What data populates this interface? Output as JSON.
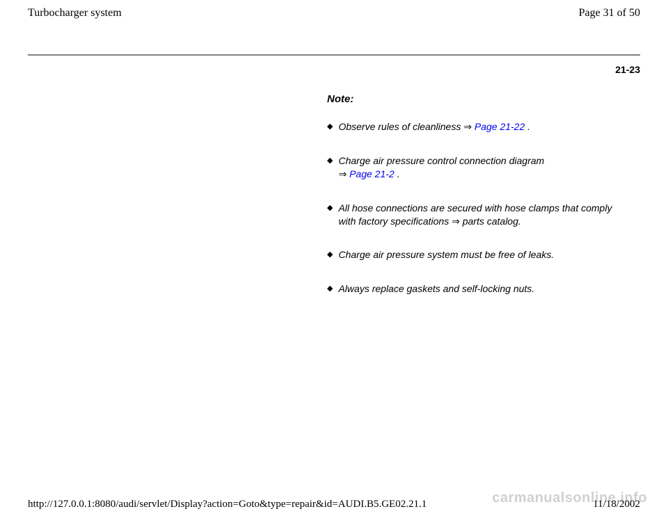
{
  "header": {
    "title": "Turbocharger system",
    "page_indicator": "Page 31 of 50"
  },
  "page_ref": "21-23",
  "content": {
    "heading": "Note:",
    "items": [
      {
        "pre_text": "Observe rules of cleanliness   ",
        "arrow": "⇒",
        "link": "Page 21-22",
        "post_text": " ."
      },
      {
        "pre_text": "Charge air pressure control connection diagram ",
        "arrow": "⇒",
        "link": "Page 21-2",
        "post_text": " ."
      },
      {
        "pre_text": "All hose connections are secured with hose clamps that comply with factory specifications ",
        "arrow": "⇒",
        "link": "",
        "post_text": " parts catalog."
      },
      {
        "pre_text": "Charge air pressure system must be free of leaks.",
        "arrow": "",
        "link": "",
        "post_text": ""
      },
      {
        "pre_text": "Always replace gaskets and self-locking nuts.",
        "arrow": "",
        "link": "",
        "post_text": ""
      }
    ]
  },
  "footer": {
    "url": "http://127.0.0.1:8080/audi/servlet/Display?action=Goto&type=repair&id=AUDI.B5.GE02.21.1",
    "date": "11/18/2002"
  },
  "watermark": "carmanualsonline.info",
  "bullet_glyph": "◆"
}
